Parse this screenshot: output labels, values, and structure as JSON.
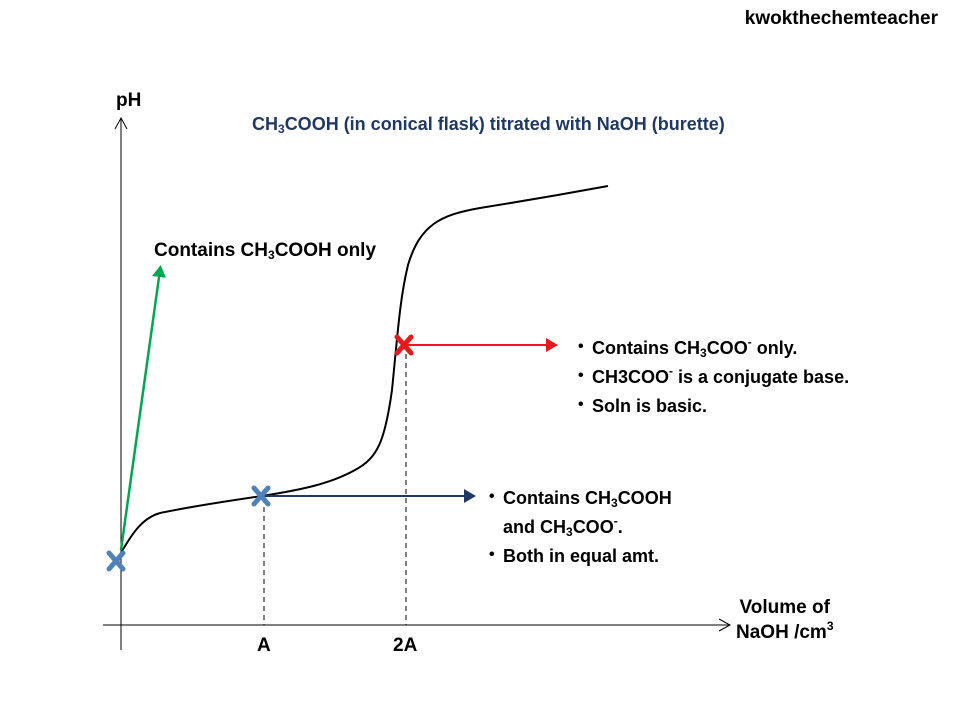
{
  "credit": "kwokthechemteacher",
  "title": {
    "pre": "CH",
    "sub": "3",
    "post": "COOH (in conical flask) titrated with NaOH (burette)"
  },
  "axes": {
    "y_label": "pH",
    "x_label_line1": "Volume of",
    "x_label_line2": "NaOH /cm",
    "x_label_sup": "3",
    "tick_a": "A",
    "tick_2a": "2A"
  },
  "annotations": {
    "start": {
      "pre": "Contains  CH",
      "sub": "3",
      "post": "COOH only",
      "color": "#00a651"
    },
    "half_equivalence": {
      "color": "#1f3864",
      "line1_pre": "Contains  CH",
      "line1_sub": "3",
      "line1_post": "COOH",
      "line2_pre": "and CH",
      "line2_sub": "3",
      "line2_mid": "COO",
      "line2_sup": "-",
      "line2_post": ".",
      "line3": "Both in equal amt."
    },
    "equivalence": {
      "color": "#e8191c",
      "line1_pre": "Contains  CH",
      "line1_sub": "3",
      "line1_mid": "COO",
      "line1_sup": "-",
      "line1_post": " only.",
      "line2_pre": "CH3COO",
      "line2_sup": "-",
      "line2_post": " is a conjugate base.",
      "line3": "Soln is basic."
    }
  },
  "markers": {
    "start_color": "#4f81bd",
    "half_color": "#4f81bd",
    "eq_color": "#e8191c"
  }
}
